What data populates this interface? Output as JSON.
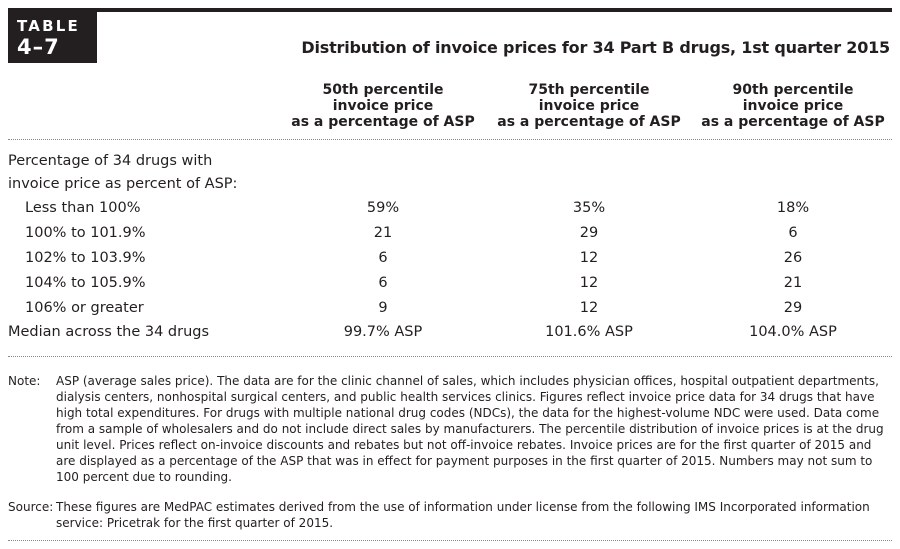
{
  "badge": {
    "line1": "TABLE",
    "line2": "4–7"
  },
  "title": "Distribution of invoice prices for 34 Part B drugs, 1st quarter 2015",
  "columns": [
    {
      "l1": "50th percentile",
      "l2": "invoice price",
      "l3": "as a percentage of ASP"
    },
    {
      "l1": "75th percentile",
      "l2": "invoice price",
      "l3": "as a percentage of ASP"
    },
    {
      "l1": "90th percentile",
      "l2": "invoice price",
      "l3": "as a percentage of ASP"
    }
  ],
  "section_label": {
    "l1": "Percentage of 34 drugs with",
    "l2": "invoice price as percent of ASP:"
  },
  "rows": [
    {
      "label": "Less than 100%",
      "v": [
        "59%",
        "35%",
        "18%"
      ]
    },
    {
      "label": "100% to 101.9%",
      "v": [
        "21",
        "29",
        "6"
      ]
    },
    {
      "label": "102% to 103.9%",
      "v": [
        "6",
        "12",
        "26"
      ]
    },
    {
      "label": "104% to 105.9%",
      "v": [
        "6",
        "12",
        "21"
      ]
    },
    {
      "label": "106% or greater",
      "v": [
        "9",
        "12",
        "29"
      ]
    }
  ],
  "median": {
    "label": "Median across the 34 drugs",
    "v": [
      "99.7% ASP",
      "101.6% ASP",
      "104.0% ASP"
    ]
  },
  "note": {
    "key": "Note:",
    "text": "ASP (average sales price). The data are for the clinic channel of sales, which includes physician offices, hospital outpatient departments, dialysis centers, nonhospital surgical centers, and public health services clinics. Figures reflect invoice price data for 34 drugs that have high total expenditures. For drugs with multiple national drug codes (NDCs), the data for the highest-volume NDC were used. Data come from a sample of wholesalers and do not include direct sales by manufacturers. The percentile distribution of invoice prices is at the drug unit level. Prices reflect on-invoice discounts and rebates but not off-invoice rebates. Invoice prices are for the first quarter of 2015 and are displayed as a percentage of the ASP that was in effect for payment purposes in the first quarter of 2015. Numbers may not sum to 100 percent due to rounding."
  },
  "source": {
    "key": "Source:",
    "text": "These figures are MedPAC estimates derived from the use of information under license from the following IMS Incorporated information service: Pricetrak for the first quarter of 2015."
  }
}
